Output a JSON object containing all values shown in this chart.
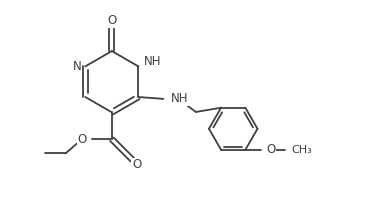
{
  "bg_color": "#ffffff",
  "line_color": "#404040",
  "line_width": 1.3,
  "font_size": 8.5,
  "fig_width": 3.88,
  "fig_height": 1.97,
  "dpi": 100,
  "xlim": [
    0,
    10
  ],
  "ylim": [
    0,
    5.2
  ]
}
